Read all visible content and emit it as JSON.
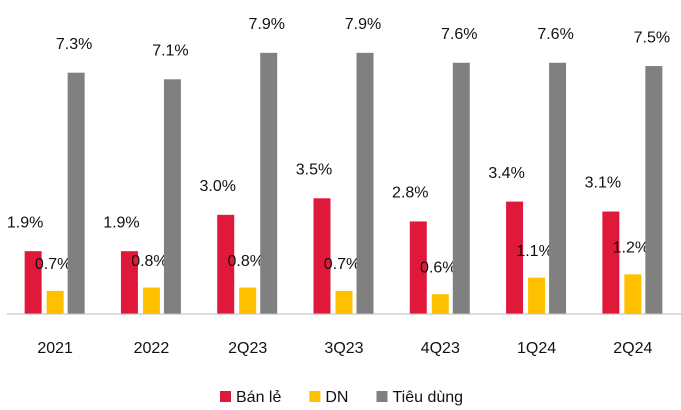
{
  "chart_data": {
    "type": "bar",
    "categories": [
      "2021",
      "2022",
      "2Q23",
      "3Q23",
      "4Q23",
      "1Q24",
      "2Q24"
    ],
    "ylim": [
      0,
      8.5
    ],
    "legend": "bottom",
    "series": [
      {
        "name": "Bán lẻ",
        "color": "#e0193a",
        "values": [
          1.9,
          1.9,
          3.0,
          3.5,
          2.8,
          3.4,
          3.1
        ],
        "value_labels": [
          "1.9%",
          "1.9%",
          "3.0%",
          "3.5%",
          "2.8%",
          "3.4%",
          "3.1%"
        ]
      },
      {
        "name": "DN",
        "color": "#ffc000",
        "values": [
          0.7,
          0.8,
          0.8,
          0.7,
          0.6,
          1.1,
          1.2
        ],
        "value_labels": [
          "0.7%",
          "0.8%",
          "0.8%",
          "0.7%",
          "0.6%",
          "1.1%",
          "1.2%"
        ]
      },
      {
        "name": "Tiêu dùng",
        "color": "#808080",
        "values": [
          7.3,
          7.1,
          7.9,
          7.9,
          7.6,
          7.6,
          7.5
        ],
        "value_labels": [
          "7.3%",
          "7.1%",
          "7.9%",
          "7.9%",
          "7.6%",
          "7.6%",
          "7.5%"
        ]
      }
    ]
  }
}
